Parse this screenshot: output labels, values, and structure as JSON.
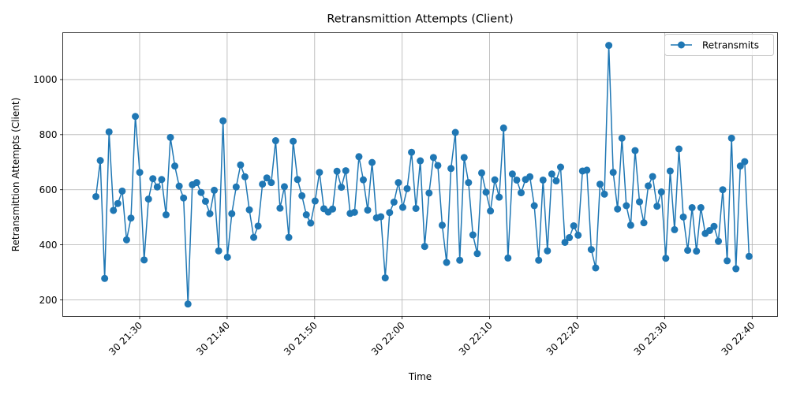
{
  "chart_data": {
    "type": "line",
    "title": "Retransmittion Attempts (Client)",
    "xlabel": "Time",
    "ylabel": "Retransmittion Attempts (Client)",
    "x_tick_labels": [
      "30 21:30",
      "30 21:40",
      "30 21:50",
      "30 22:00",
      "30 22:10",
      "30 22:20",
      "30 22:30",
      "30 22:40"
    ],
    "y_tick_labels": [
      "200",
      "400",
      "600",
      "800",
      "1000"
    ],
    "ylim": [
      140,
      1170
    ],
    "grid": true,
    "legend_position": "top-right",
    "series_color": "#1f77b4",
    "series": [
      {
        "name": "Retransmits",
        "values": [
          575,
          706,
          278,
          810,
          525,
          550,
          595,
          418,
          497,
          866,
          663,
          345,
          566,
          640,
          610,
          637,
          509,
          790,
          686,
          613,
          570,
          185,
          618,
          626,
          590,
          558,
          513,
          598,
          378,
          850,
          355,
          513,
          610,
          690,
          647,
          527,
          427,
          468,
          620,
          643,
          626,
          778,
          533,
          611,
          427,
          776,
          637,
          578,
          509,
          479,
          559,
          663,
          531,
          519,
          530,
          667,
          609,
          669,
          514,
          518,
          720,
          636,
          526,
          699,
          498,
          502,
          280,
          517,
          555,
          626,
          536,
          604,
          736,
          532,
          705,
          394,
          588,
          717,
          688,
          471,
          336,
          677,
          808,
          344,
          717,
          626,
          436,
          368,
          661,
          591,
          523,
          636,
          573,
          824,
          352,
          657,
          635,
          589,
          637,
          647,
          542,
          344,
          635,
          378,
          657,
          632,
          682,
          409,
          426,
          469,
          435,
          668,
          671,
          383,
          316,
          620,
          584,
          1124,
          663,
          530,
          787,
          542,
          471,
          742,
          556,
          480,
          614,
          648,
          540,
          592,
          351,
          668,
          455,
          748,
          501,
          380,
          535,
          377,
          535,
          441,
          452,
          467,
          413,
          600,
          342,
          787,
          313,
          686,
          702,
          358
        ]
      }
    ]
  }
}
